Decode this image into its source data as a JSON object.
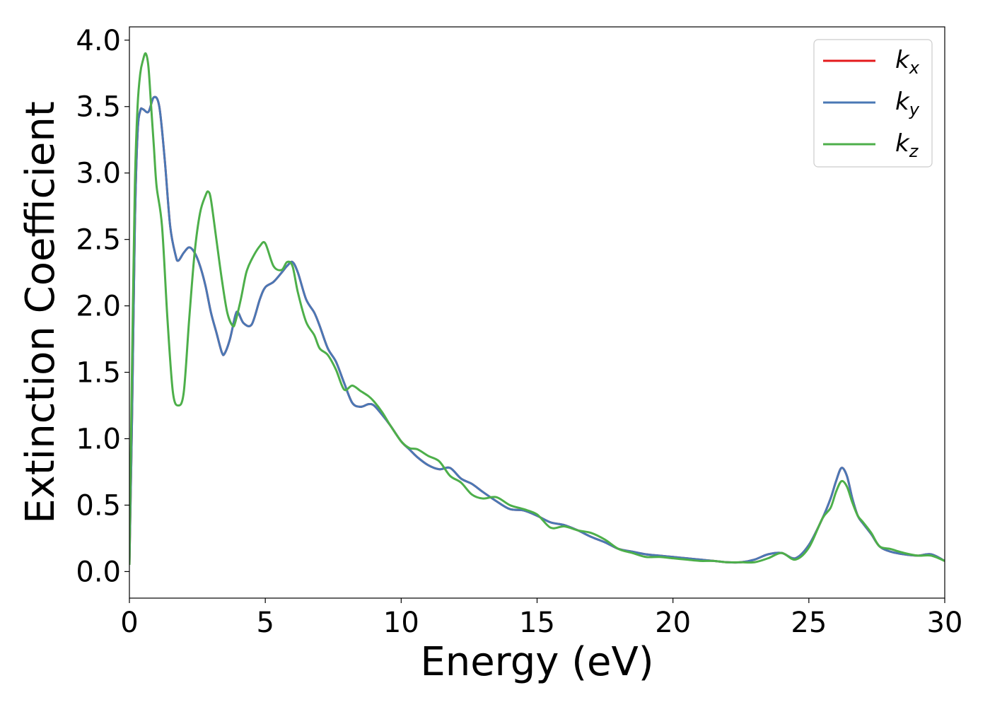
{
  "chart_data": {
    "type": "line",
    "title": "",
    "xlabel": "Energy (eV)",
    "ylabel": "Extinction Coefficient",
    "xlim": [
      0,
      30
    ],
    "ylim": [
      -0.2,
      4.1
    ],
    "xticks": [
      0,
      5,
      10,
      15,
      20,
      25,
      30
    ],
    "xtick_labels": [
      "0",
      "5",
      "10",
      "15",
      "20",
      "25",
      "30"
    ],
    "yticks": [
      0.0,
      0.5,
      1.0,
      1.5,
      2.0,
      2.5,
      3.0,
      3.5,
      4.0
    ],
    "ytick_labels": [
      "0.0",
      "0.5",
      "1.0",
      "1.5",
      "2.0",
      "2.5",
      "3.0",
      "3.5",
      "4.0"
    ],
    "grid": false,
    "legend_position": "top-right",
    "series": [
      {
        "name": "k_x",
        "legend_base": "k",
        "legend_sub": "x",
        "color": "#e41a1c",
        "x": [
          0,
          0.1,
          0.2,
          0.3,
          0.4,
          0.5,
          0.7,
          0.9,
          1.1,
          1.3,
          1.5,
          1.7,
          1.8,
          2.0,
          2.2,
          2.4,
          2.6,
          2.8,
          3.0,
          3.2,
          3.4,
          3.5,
          3.7,
          3.9,
          4.0,
          4.2,
          4.5,
          4.8,
          5.0,
          5.3,
          5.6,
          5.8,
          6.0,
          6.2,
          6.5,
          6.8,
          7.0,
          7.3,
          7.6,
          7.9,
          8.2,
          8.5,
          8.8,
          9.0,
          9.3,
          9.6,
          10.0,
          10.3,
          10.6,
          11.0,
          11.4,
          11.8,
          12.2,
          12.6,
          13.0,
          13.5,
          14.0,
          14.5,
          15.0,
          15.5,
          16.0,
          16.5,
          17.0,
          17.5,
          18.0,
          18.5,
          19.0,
          19.5,
          20.0,
          20.5,
          21.0,
          21.5,
          22.0,
          22.5,
          23.0,
          23.5,
          24.0,
          24.5,
          25.0,
          25.5,
          25.8,
          26.0,
          26.2,
          26.4,
          26.6,
          26.8,
          27.0,
          27.3,
          27.6,
          28.0,
          28.5,
          29.0,
          29.5,
          30.0
        ],
        "y": [
          0.05,
          1.2,
          2.6,
          3.3,
          3.47,
          3.48,
          3.46,
          3.57,
          3.5,
          3.1,
          2.6,
          2.38,
          2.34,
          2.4,
          2.44,
          2.4,
          2.3,
          2.15,
          1.95,
          1.8,
          1.65,
          1.64,
          1.75,
          1.93,
          1.95,
          1.87,
          1.86,
          2.05,
          2.14,
          2.18,
          2.25,
          2.3,
          2.33,
          2.25,
          2.05,
          1.95,
          1.85,
          1.68,
          1.58,
          1.42,
          1.27,
          1.24,
          1.26,
          1.25,
          1.18,
          1.1,
          0.98,
          0.92,
          0.86,
          0.8,
          0.77,
          0.78,
          0.7,
          0.66,
          0.6,
          0.53,
          0.47,
          0.46,
          0.42,
          0.37,
          0.35,
          0.31,
          0.26,
          0.22,
          0.17,
          0.15,
          0.13,
          0.12,
          0.11,
          0.1,
          0.09,
          0.08,
          0.07,
          0.07,
          0.09,
          0.13,
          0.14,
          0.1,
          0.2,
          0.4,
          0.55,
          0.68,
          0.78,
          0.72,
          0.55,
          0.42,
          0.36,
          0.28,
          0.19,
          0.15,
          0.13,
          0.12,
          0.13,
          0.08
        ]
      },
      {
        "name": "k_y",
        "legend_base": "k",
        "legend_sub": "y",
        "color": "#4a78b5",
        "x": [
          0,
          0.1,
          0.2,
          0.3,
          0.4,
          0.5,
          0.7,
          0.9,
          1.1,
          1.3,
          1.5,
          1.7,
          1.8,
          2.0,
          2.2,
          2.4,
          2.6,
          2.8,
          3.0,
          3.2,
          3.4,
          3.5,
          3.7,
          3.9,
          4.0,
          4.2,
          4.5,
          4.8,
          5.0,
          5.3,
          5.6,
          5.8,
          6.0,
          6.2,
          6.5,
          6.8,
          7.0,
          7.3,
          7.6,
          7.9,
          8.2,
          8.5,
          8.8,
          9.0,
          9.3,
          9.6,
          10.0,
          10.3,
          10.6,
          11.0,
          11.4,
          11.8,
          12.2,
          12.6,
          13.0,
          13.5,
          14.0,
          14.5,
          15.0,
          15.5,
          16.0,
          16.5,
          17.0,
          17.5,
          18.0,
          18.5,
          19.0,
          19.5,
          20.0,
          20.5,
          21.0,
          21.5,
          22.0,
          22.5,
          23.0,
          23.5,
          24.0,
          24.5,
          25.0,
          25.5,
          25.8,
          26.0,
          26.2,
          26.4,
          26.6,
          26.8,
          27.0,
          27.3,
          27.6,
          28.0,
          28.5,
          29.0,
          29.5,
          30.0
        ],
        "y": [
          0.05,
          1.2,
          2.6,
          3.3,
          3.47,
          3.48,
          3.46,
          3.57,
          3.5,
          3.1,
          2.6,
          2.38,
          2.34,
          2.4,
          2.44,
          2.4,
          2.3,
          2.15,
          1.95,
          1.8,
          1.65,
          1.64,
          1.75,
          1.93,
          1.95,
          1.87,
          1.86,
          2.05,
          2.14,
          2.18,
          2.25,
          2.3,
          2.33,
          2.25,
          2.05,
          1.95,
          1.85,
          1.68,
          1.58,
          1.42,
          1.27,
          1.24,
          1.26,
          1.25,
          1.18,
          1.1,
          0.98,
          0.92,
          0.86,
          0.8,
          0.77,
          0.78,
          0.7,
          0.66,
          0.6,
          0.53,
          0.47,
          0.46,
          0.42,
          0.37,
          0.35,
          0.31,
          0.26,
          0.22,
          0.17,
          0.15,
          0.13,
          0.12,
          0.11,
          0.1,
          0.09,
          0.08,
          0.07,
          0.07,
          0.09,
          0.13,
          0.14,
          0.1,
          0.2,
          0.4,
          0.55,
          0.68,
          0.78,
          0.72,
          0.55,
          0.42,
          0.36,
          0.28,
          0.19,
          0.15,
          0.13,
          0.12,
          0.13,
          0.08
        ]
      },
      {
        "name": "k_z",
        "legend_base": "k",
        "legend_sub": "z",
        "color": "#4daf4a",
        "x": [
          0,
          0.1,
          0.2,
          0.3,
          0.4,
          0.5,
          0.6,
          0.7,
          0.8,
          0.9,
          1.0,
          1.2,
          1.4,
          1.6,
          1.8,
          2.0,
          2.2,
          2.4,
          2.6,
          2.8,
          2.9,
          3.0,
          3.2,
          3.4,
          3.6,
          3.8,
          3.9,
          4.1,
          4.3,
          4.5,
          4.8,
          5.0,
          5.3,
          5.6,
          5.8,
          6.0,
          6.2,
          6.5,
          6.8,
          7.0,
          7.3,
          7.6,
          7.9,
          8.2,
          8.5,
          8.8,
          9.0,
          9.3,
          9.6,
          10.0,
          10.3,
          10.6,
          11.0,
          11.4,
          11.8,
          12.2,
          12.6,
          13.0,
          13.5,
          14.0,
          14.5,
          15.0,
          15.5,
          16.0,
          16.5,
          17.0,
          17.5,
          18.0,
          18.5,
          19.0,
          19.5,
          20.0,
          20.5,
          21.0,
          21.5,
          22.0,
          22.5,
          23.0,
          23.5,
          24.0,
          24.5,
          25.0,
          25.5,
          25.8,
          26.0,
          26.2,
          26.4,
          26.6,
          26.8,
          27.0,
          27.3,
          27.6,
          28.0,
          28.5,
          29.0,
          29.5,
          30.0
        ],
        "y": [
          0.05,
          1.6,
          2.9,
          3.5,
          3.75,
          3.85,
          3.9,
          3.8,
          3.5,
          3.2,
          2.9,
          2.6,
          1.9,
          1.35,
          1.25,
          1.35,
          1.9,
          2.4,
          2.7,
          2.83,
          2.86,
          2.8,
          2.5,
          2.2,
          1.95,
          1.85,
          1.88,
          2.05,
          2.25,
          2.35,
          2.45,
          2.47,
          2.3,
          2.27,
          2.33,
          2.3,
          2.1,
          1.88,
          1.78,
          1.68,
          1.63,
          1.52,
          1.37,
          1.4,
          1.36,
          1.32,
          1.28,
          1.2,
          1.1,
          0.98,
          0.93,
          0.92,
          0.87,
          0.83,
          0.72,
          0.67,
          0.58,
          0.55,
          0.56,
          0.5,
          0.47,
          0.43,
          0.33,
          0.34,
          0.31,
          0.29,
          0.24,
          0.17,
          0.14,
          0.11,
          0.11,
          0.1,
          0.09,
          0.08,
          0.08,
          0.07,
          0.07,
          0.07,
          0.1,
          0.14,
          0.09,
          0.18,
          0.4,
          0.48,
          0.6,
          0.68,
          0.64,
          0.52,
          0.42,
          0.37,
          0.29,
          0.19,
          0.17,
          0.14,
          0.12,
          0.12,
          0.08
        ]
      }
    ]
  }
}
